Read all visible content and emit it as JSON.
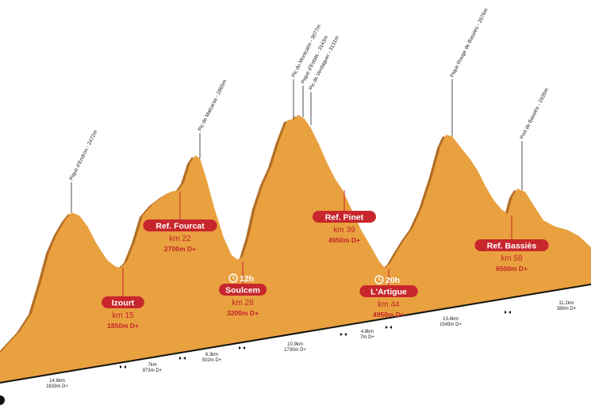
{
  "colors": {
    "profile_fill": "#e9a03e",
    "profile_edge": "#b26e25",
    "badge": "#c7262c",
    "text_red": "#c0242b",
    "baseline": "#111111"
  },
  "chart_data": {
    "type": "area",
    "title": "",
    "xlabel": "",
    "ylabel": "",
    "peaks": [
      {
        "label": "Pique d'Endron - 2472m"
      },
      {
        "label": "Pic de Malcaras - 2865m"
      },
      {
        "label": "Pic du Montcalm - 3077m"
      },
      {
        "label": "Pique d'Estats - 3143m"
      },
      {
        "label": "Pic de Verdaguer - 3131m"
      },
      {
        "label": "Pique Rouge de Bassiès - 2676m"
      },
      {
        "label": "Port de Bassiès - 1935m"
      }
    ],
    "checkpoints": [
      {
        "name": "Izourt",
        "km": "km 15",
        "dplus": "1850m D+"
      },
      {
        "name": "Ref. Fourcat",
        "km": "km 22",
        "dplus": "2700m D+"
      },
      {
        "name": "Soulcem",
        "km": "km 28",
        "dplus": "3200m D+",
        "time": "12h"
      },
      {
        "name": "Ref. Pinet",
        "km": "km 39",
        "dplus": "4950m D+"
      },
      {
        "name": "L'Artigue",
        "km": "km 44",
        "dplus": "4950m D+",
        "time": "20h"
      },
      {
        "name": "Ref. Bassiès",
        "km": "km 58",
        "dplus": "6500m D+"
      }
    ],
    "segments": [
      {
        "dist": "14.8km",
        "dplus": "1833m D+"
      },
      {
        "dist": "7km",
        "dplus": "873m D+"
      },
      {
        "dist": "6.3km",
        "dplus": "502m D+"
      },
      {
        "dist": "10.9km",
        "dplus": "1730m D+"
      },
      {
        "dist": "4.8km",
        "dplus": "7m D+"
      },
      {
        "dist": "13.4km",
        "dplus": "1545m D+"
      },
      {
        "dist": "11.2km",
        "dplus": "389m D+"
      }
    ]
  }
}
